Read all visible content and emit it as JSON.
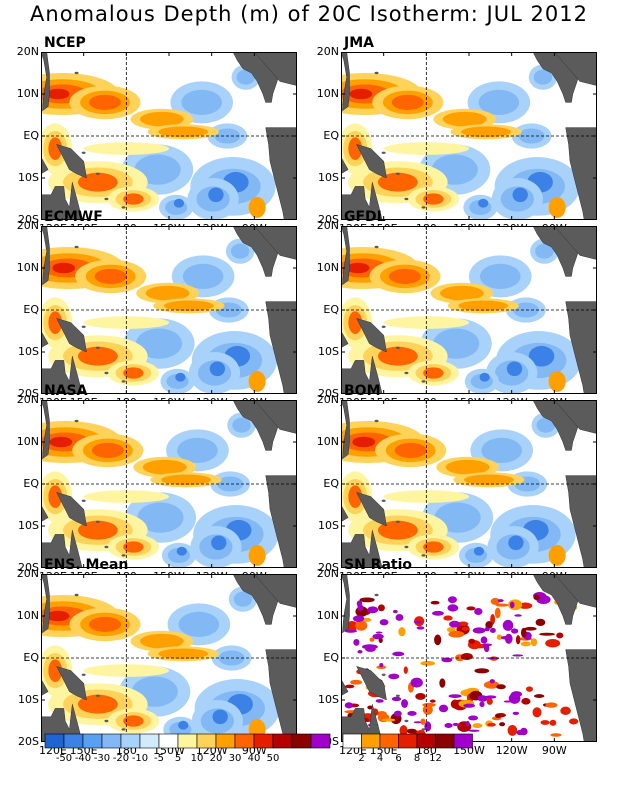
{
  "title": "Anomalous Depth (m) of 20C Isotherm: JUL 2012",
  "panels": [
    {
      "name": "NCEP"
    },
    {
      "name": "JMA"
    },
    {
      "name": "ECMWF"
    },
    {
      "name": "GFDL"
    },
    {
      "name": "NASA"
    },
    {
      "name": "BOM"
    },
    {
      "name": "ENS. Mean"
    },
    {
      "name": "SN Ratio"
    }
  ],
  "lat_labels": [
    "20N",
    "10N",
    "EQ",
    "10S",
    "20S"
  ],
  "lon_labels": [
    "120E",
    "150E",
    "180",
    "150W",
    "120W",
    "90W"
  ],
  "colors": {
    "land": "#5b5b5b",
    "ocean_neutral": "#ffffff"
  },
  "anomaly_colorbar": {
    "labels": [
      "-50",
      "-40",
      "-30",
      "-20",
      "-10",
      "-5",
      "5",
      "10",
      "20",
      "30",
      "40",
      "50"
    ],
    "colors": [
      "#1e64d2",
      "#3c82e6",
      "#5aa0f0",
      "#82b9f5",
      "#a8d2fa",
      "#d2ebfc",
      "#ffffff",
      "#fff5a0",
      "#ffd25a",
      "#ffa000",
      "#ff6400",
      "#e61e00",
      "#b40000",
      "#8c0000",
      "#a000c8"
    ]
  },
  "sn_colorbar": {
    "labels": [
      "2",
      "4",
      "6",
      "8",
      "12"
    ],
    "colors": [
      "#ffffff",
      "#ffa000",
      "#ff6400",
      "#e61e00",
      "#b40000",
      "#8c0000",
      "#a000c8"
    ]
  }
}
